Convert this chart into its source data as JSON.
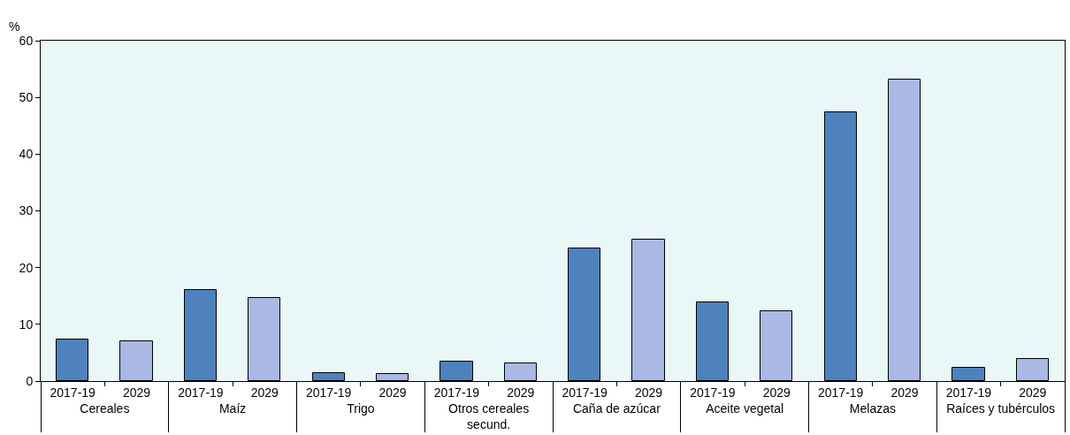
{
  "chart_data": {
    "type": "bar",
    "ylabel": "%",
    "categories": [
      "Cereales",
      "Maíz",
      "Trigo",
      "Otros cereales secund.",
      "Caña de azúcar",
      "Aceite vegetal",
      "Melazas",
      "Raíces y tubérculos"
    ],
    "series": [
      {
        "name": "2017-19",
        "color": "#4f81bd",
        "values": [
          7.4,
          16.0,
          1.4,
          3.4,
          23.3,
          13.9,
          47.4,
          2.3
        ]
      },
      {
        "name": "2029",
        "color": "#a9b9e3",
        "values": [
          7.0,
          14.6,
          1.3,
          3.1,
          24.9,
          12.3,
          53.1,
          3.9
        ]
      }
    ],
    "ylim": [
      0,
      60
    ],
    "yticks": [
      0,
      10,
      20,
      30,
      40,
      50,
      60
    ],
    "grid": false,
    "legend": false
  }
}
